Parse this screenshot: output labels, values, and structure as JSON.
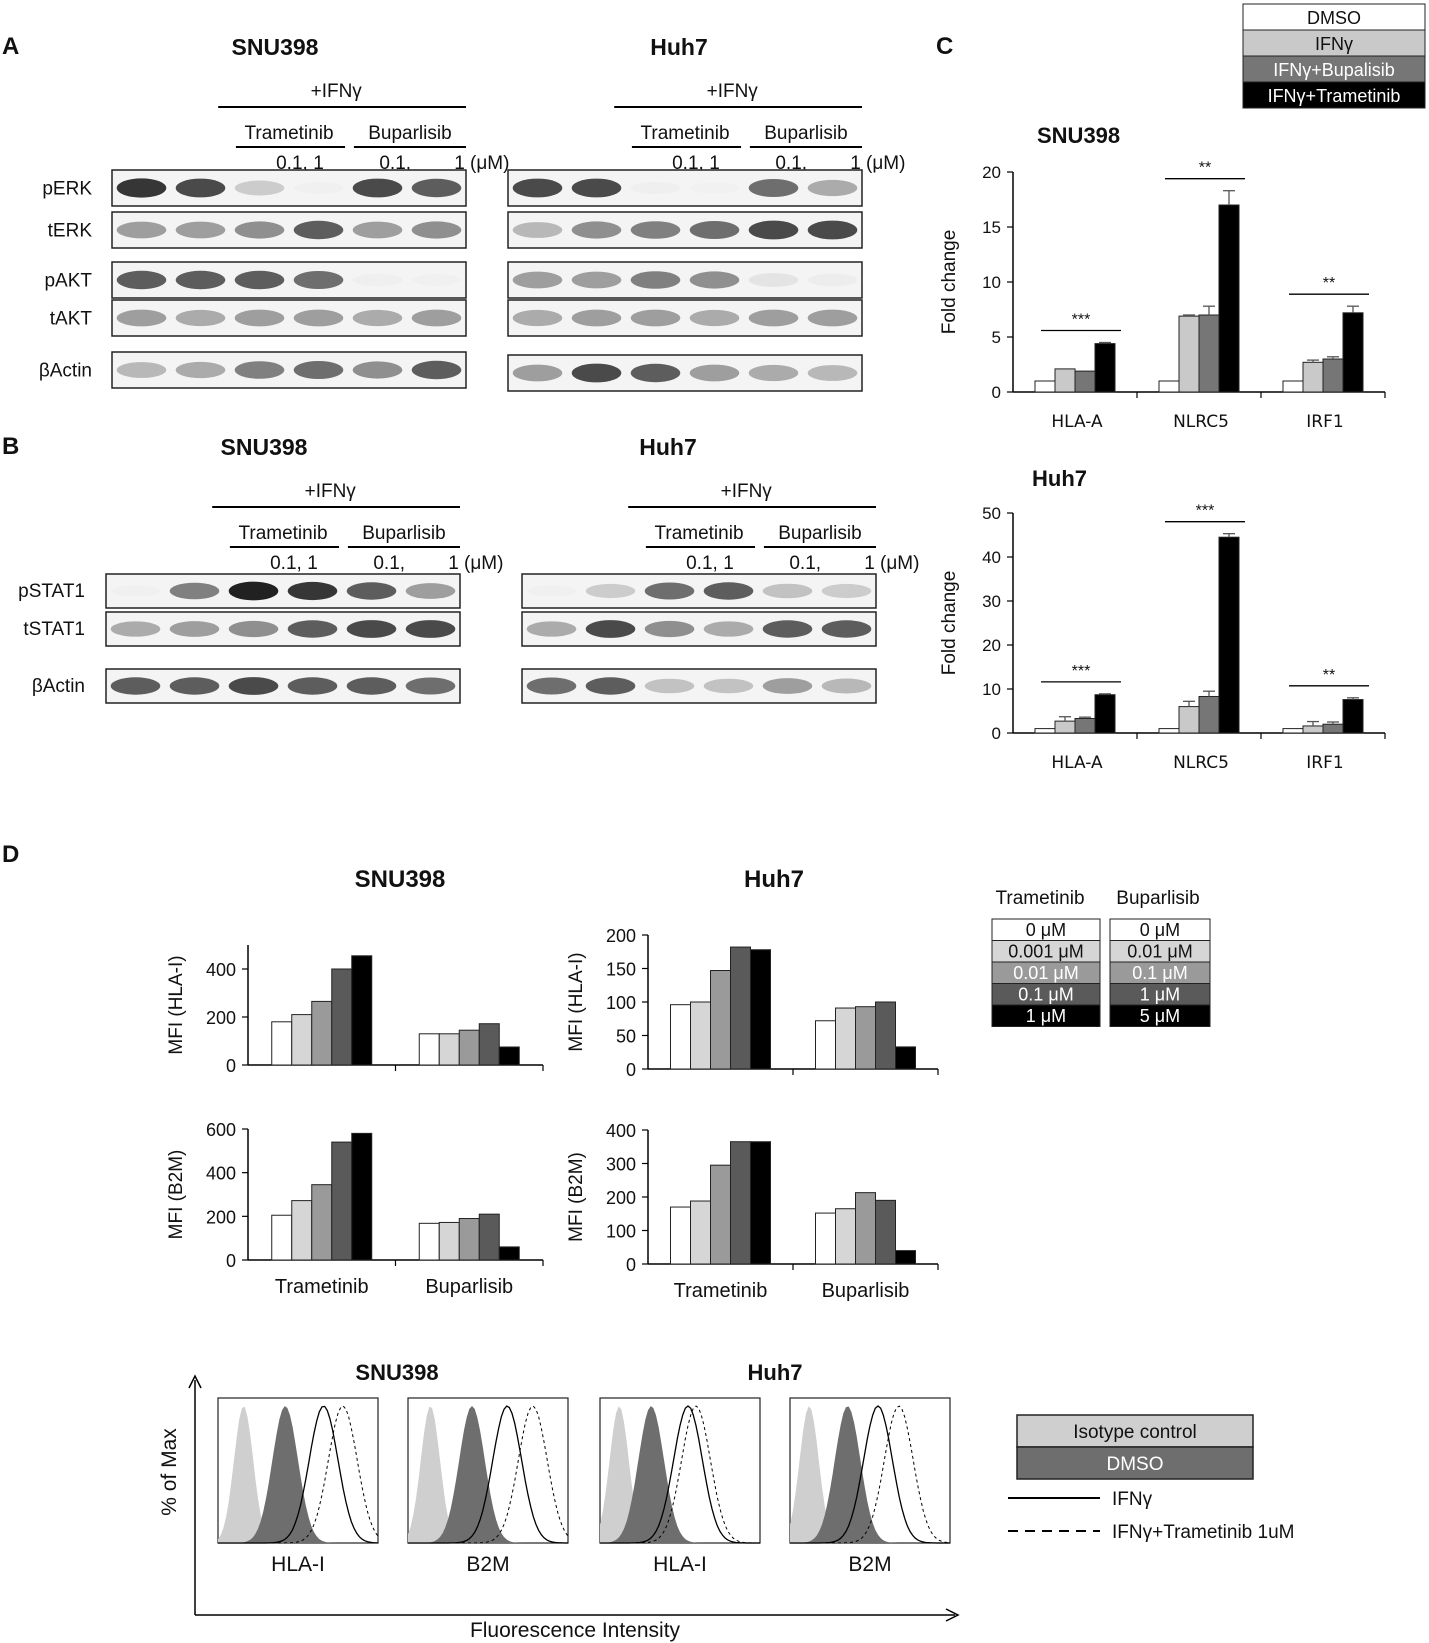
{
  "panel_letters": {
    "a": "A",
    "b": "B",
    "c": "C",
    "d": "D"
  },
  "colors": {
    "dmso": "#ffffff",
    "ifng": "#c9c9c9",
    "ifng_bupalisib": "#767676",
    "ifng_trametinib": "#000000",
    "conc_0": "#ffffff",
    "conc_1": "#d6d6d6",
    "conc_2": "#9a9a9a",
    "conc_3": "#5a5a5a",
    "conc_4": "#000000",
    "isotype": "#cfcfcf",
    "dmso_hist": "#6e6e6e"
  },
  "panel_a": {
    "snu398": {
      "title": "SNU398",
      "ifng": "+IFNγ",
      "drug1": "Trametinib",
      "drug2": "Buparlisib",
      "doses": [
        "0.1,",
        "1",
        "0.1,",
        "1 (μM)"
      ],
      "blots": [
        "pERK",
        "tERK",
        "pAKT",
        "tAKT",
        "βActin"
      ],
      "intensities": [
        [
          0.9,
          0.85,
          0.4,
          0.05,
          0.85,
          0.8
        ],
        [
          0.6,
          0.6,
          0.65,
          0.8,
          0.6,
          0.65
        ],
        [
          0.8,
          0.8,
          0.8,
          0.75,
          0.1,
          0.06
        ],
        [
          0.6,
          0.55,
          0.6,
          0.6,
          0.55,
          0.6
        ],
        [
          0.5,
          0.55,
          0.7,
          0.75,
          0.65,
          0.8
        ]
      ]
    },
    "huh7": {
      "title": "Huh7",
      "ifng": "+IFNγ",
      "drug1": "Trametinib",
      "drug2": "Buparlisib",
      "doses": [
        "0.1,",
        "1",
        "0.1,",
        "1 (μM)"
      ],
      "blots": [
        "pERK",
        "tERK",
        "pAKT",
        "tAKT",
        "βActin"
      ],
      "intensities": [
        [
          0.85,
          0.85,
          0.08,
          0.02,
          0.75,
          0.55
        ],
        [
          0.5,
          0.65,
          0.7,
          0.75,
          0.85,
          0.85
        ],
        [
          0.6,
          0.6,
          0.7,
          0.65,
          0.25,
          0.15
        ],
        [
          0.55,
          0.6,
          0.6,
          0.55,
          0.6,
          0.6
        ],
        [
          0.6,
          0.85,
          0.8,
          0.6,
          0.55,
          0.5
        ]
      ]
    }
  },
  "panel_b": {
    "snu398": {
      "title": "SNU398",
      "ifng": "+IFNγ",
      "drug1": "Trametinib",
      "drug2": "Buparlisib",
      "doses": [
        "0.1,",
        "1",
        "0.1,",
        "1 (μM)"
      ],
      "blots": [
        "pSTAT1",
        "tSTAT1",
        "βActin"
      ],
      "intensities": [
        [
          0.05,
          0.7,
          0.95,
          0.9,
          0.8,
          0.6
        ],
        [
          0.55,
          0.6,
          0.65,
          0.8,
          0.85,
          0.85
        ],
        [
          0.8,
          0.8,
          0.85,
          0.8,
          0.8,
          0.75
        ]
      ]
    },
    "huh7": {
      "title": "Huh7",
      "ifng": "+IFNγ",
      "drug1": "Trametinib",
      "drug2": "Buparlisib",
      "doses": [
        "0.1,",
        "1",
        "0.1,",
        "1 (μM)"
      ],
      "blots": [
        "pSTAT1",
        "tSTAT1",
        "βActin"
      ],
      "intensities": [
        [
          0.05,
          0.4,
          0.75,
          0.8,
          0.45,
          0.4
        ],
        [
          0.55,
          0.85,
          0.65,
          0.55,
          0.8,
          0.8
        ],
        [
          0.75,
          0.8,
          0.45,
          0.45,
          0.6,
          0.5
        ]
      ]
    }
  },
  "panel_c": {
    "legend": [
      "DMSO",
      "IFNγ",
      "IFNγ+Bupalisib",
      "IFNγ+Trametinib"
    ]
  },
  "panel_d": {
    "titles": {
      "snu398": "SNU398",
      "huh7": "Huh7"
    },
    "legend_headers": [
      "Trametinib",
      "Buparlisib"
    ],
    "legend_trametinib": [
      "0 μM",
      "0.001 μM",
      "0.01 μM",
      "0.1 μM",
      "1 μM"
    ],
    "legend_buparlisib": [
      "0 μM",
      "0.01 μM",
      "0.1 μM",
      "1 μM",
      "5 μM"
    ],
    "flow": {
      "titles": {
        "snu398": "SNU398",
        "huh7": "Huh7"
      },
      "ylabel": "% of Max",
      "xlabel": "Fluorescence Intensity",
      "markers": [
        "HLA-I",
        "B2M",
        "HLA-I",
        "B2M"
      ],
      "legend": [
        "Isotype control",
        "DMSO",
        "IFNγ",
        "IFNγ+Trametinib 1uM"
      ]
    }
  },
  "chart_data": [
    {
      "type": "bar",
      "title": "SNU398",
      "ylabel": "Fold change",
      "ylim": [
        0,
        20
      ],
      "yticks": [
        0,
        5,
        10,
        15,
        20
      ],
      "categories": [
        "HLA-A",
        "NLRC5",
        "IRF1"
      ],
      "series": [
        {
          "name": "DMSO",
          "values": [
            1,
            1,
            1
          ],
          "errors": [
            0,
            0,
            0
          ]
        },
        {
          "name": "IFNγ",
          "values": [
            2.1,
            6.9,
            2.7
          ],
          "errors": [
            0,
            0.1,
            0.2
          ]
        },
        {
          "name": "IFNγ+Bupalisib",
          "values": [
            1.9,
            7.0,
            3.0
          ],
          "errors": [
            0,
            0.8,
            0.2
          ]
        },
        {
          "name": "IFNγ+Trametinib",
          "values": [
            4.4,
            17.0,
            7.2
          ],
          "errors": [
            0.1,
            1.3,
            0.6
          ]
        }
      ],
      "significance": [
        "***",
        "**",
        "**"
      ]
    },
    {
      "type": "bar",
      "title": "Huh7",
      "ylabel": "Fold change",
      "ylim": [
        0,
        50
      ],
      "yticks": [
        0,
        10,
        20,
        30,
        40,
        50
      ],
      "categories": [
        "HLA-A",
        "NLRC5",
        "IRF1"
      ],
      "series": [
        {
          "name": "DMSO",
          "values": [
            1,
            1,
            1
          ],
          "errors": [
            0,
            0,
            0
          ]
        },
        {
          "name": "IFNγ",
          "values": [
            2.7,
            6.0,
            1.6
          ],
          "errors": [
            1.0,
            1.2,
            1.0
          ]
        },
        {
          "name": "IFNγ+Bupalisib",
          "values": [
            3.3,
            8.3,
            2.0
          ],
          "errors": [
            0.3,
            1.2,
            0.5
          ]
        },
        {
          "name": "IFNγ+Trametinib",
          "values": [
            8.7,
            44.5,
            7.6
          ],
          "errors": [
            0.2,
            0.8,
            0.4
          ]
        }
      ],
      "significance": [
        "***",
        "***",
        "**"
      ]
    },
    {
      "type": "bar",
      "title": "SNU398",
      "ylabel": "MFI (HLA-I)",
      "ylim": [
        0,
        500
      ],
      "yticks": [
        0,
        200,
        400
      ],
      "categories": [
        "Trametinib",
        "Buparlisib"
      ],
      "show_categories": false,
      "groups": [
        [
          180,
          210,
          265,
          400,
          455
        ],
        [
          130,
          130,
          145,
          172,
          75
        ]
      ]
    },
    {
      "type": "bar",
      "title": "Huh7",
      "ylabel": "MFI (HLA-I)",
      "ylim": [
        0,
        200
      ],
      "yticks": [
        0,
        50,
        100,
        150,
        200
      ],
      "categories": [
        "Trametinib",
        "Buparlisib"
      ],
      "show_categories": false,
      "groups": [
        [
          96,
          100,
          147,
          182,
          178
        ],
        [
          72,
          91,
          93,
          100,
          33
        ]
      ]
    },
    {
      "type": "bar",
      "title": "",
      "ylabel": "MFI (B2M)",
      "ylim": [
        0,
        600
      ],
      "yticks": [
        0,
        200,
        400,
        600
      ],
      "categories": [
        "Trametinib",
        "Buparlisib"
      ],
      "show_categories": true,
      "groups": [
        [
          205,
          272,
          345,
          540,
          580
        ],
        [
          168,
          172,
          190,
          210,
          60
        ]
      ]
    },
    {
      "type": "bar",
      "title": "",
      "ylabel": "MFI (B2M)",
      "ylim": [
        0,
        400
      ],
      "yticks": [
        0,
        100,
        200,
        300,
        400
      ],
      "categories": [
        "Trametinib",
        "Buparlisib"
      ],
      "show_categories": true,
      "groups": [
        [
          170,
          188,
          295,
          365,
          365
        ],
        [
          152,
          165,
          213,
          190,
          40
        ]
      ]
    }
  ]
}
